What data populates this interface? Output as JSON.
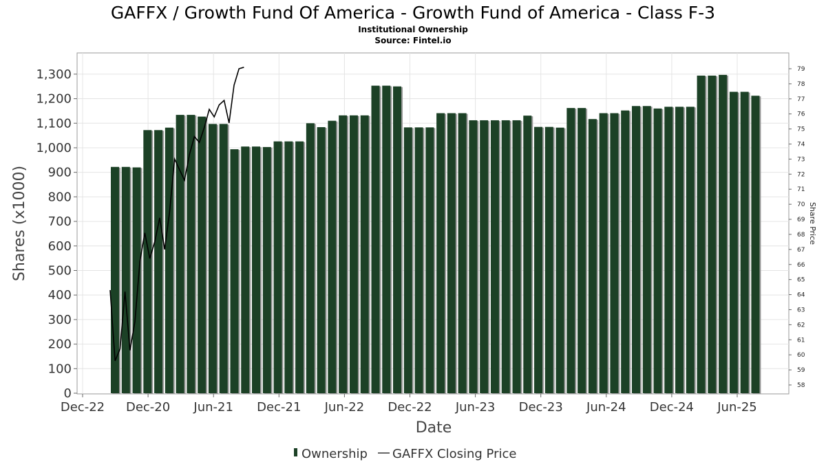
{
  "chart_data": {
    "type": "bar",
    "title": "GAFFX / Growth Fund Of America - Growth Fund of America - Class F-3",
    "subtitle": "Institutional Ownership",
    "source": "Source: Fintel.io",
    "xlabel": "Date",
    "ylabel": "Shares (x1000)",
    "y2label": "Share Price",
    "ylim": [
      0,
      1350
    ],
    "y2lim": [
      57.4,
      79.6
    ],
    "yticks": [
      "0",
      "100",
      "200",
      "300",
      "400",
      "500",
      "600",
      "700",
      "800",
      "900",
      "1,000",
      "1,100",
      "1,200",
      "1,300"
    ],
    "y2ticks": [
      "58",
      "59",
      "60",
      "61",
      "62",
      "63",
      "64",
      "65",
      "66",
      "67",
      "68",
      "69",
      "70",
      "71",
      "72",
      "73",
      "74",
      "75",
      "76",
      "77",
      "78",
      "79"
    ],
    "xticks": [
      "Dec-22",
      "Dec-20",
      "Jun-21",
      "Dec-21",
      "Jun-22",
      "Dec-22",
      "Jun-23",
      "Dec-23",
      "Jun-24",
      "Dec-24",
      "Jun-25"
    ],
    "grid": true,
    "legend_position": "bottom",
    "colors": {
      "bar": "#1c4126",
      "bar_shadow": "#9a9a9a",
      "line": "#000000",
      "grid": "#e4e4e4",
      "frame": "#999999"
    },
    "series": [
      {
        "name": "Ownership",
        "type": "bar",
        "values": [
          922,
          922,
          920,
          1072,
          1072,
          1082,
          1134,
          1134,
          1127,
          1097,
          1097,
          994,
          1005,
          1005,
          1003,
          1026,
          1026,
          1026,
          1100,
          1084,
          1110,
          1132,
          1132,
          1132,
          1253,
          1253,
          1250,
          1083,
          1083,
          1083,
          1141,
          1141,
          1141,
          1112,
          1112,
          1112,
          1112,
          1112,
          1131,
          1085,
          1085,
          1082,
          1162,
          1162,
          1117,
          1141,
          1141,
          1152,
          1170,
          1170,
          1160,
          1167,
          1167,
          1167,
          1294,
          1294,
          1297,
          1228,
          1228,
          1212
        ]
      },
      {
        "name": "GAFFX Closing Price",
        "type": "line",
        "values": [
          64.3,
          59.6,
          60.4,
          64.2,
          60.3,
          62.2,
          66.2,
          68.1,
          66.4,
          67.5,
          69.1,
          67.0,
          69.5,
          73.0,
          72.3,
          71.6,
          73.3,
          74.5,
          74.1,
          75.1,
          76.3,
          75.8,
          76.6,
          76.9,
          75.4,
          77.9,
          79.0,
          79.1
        ],
        "value_suffix": ""
      }
    ]
  }
}
